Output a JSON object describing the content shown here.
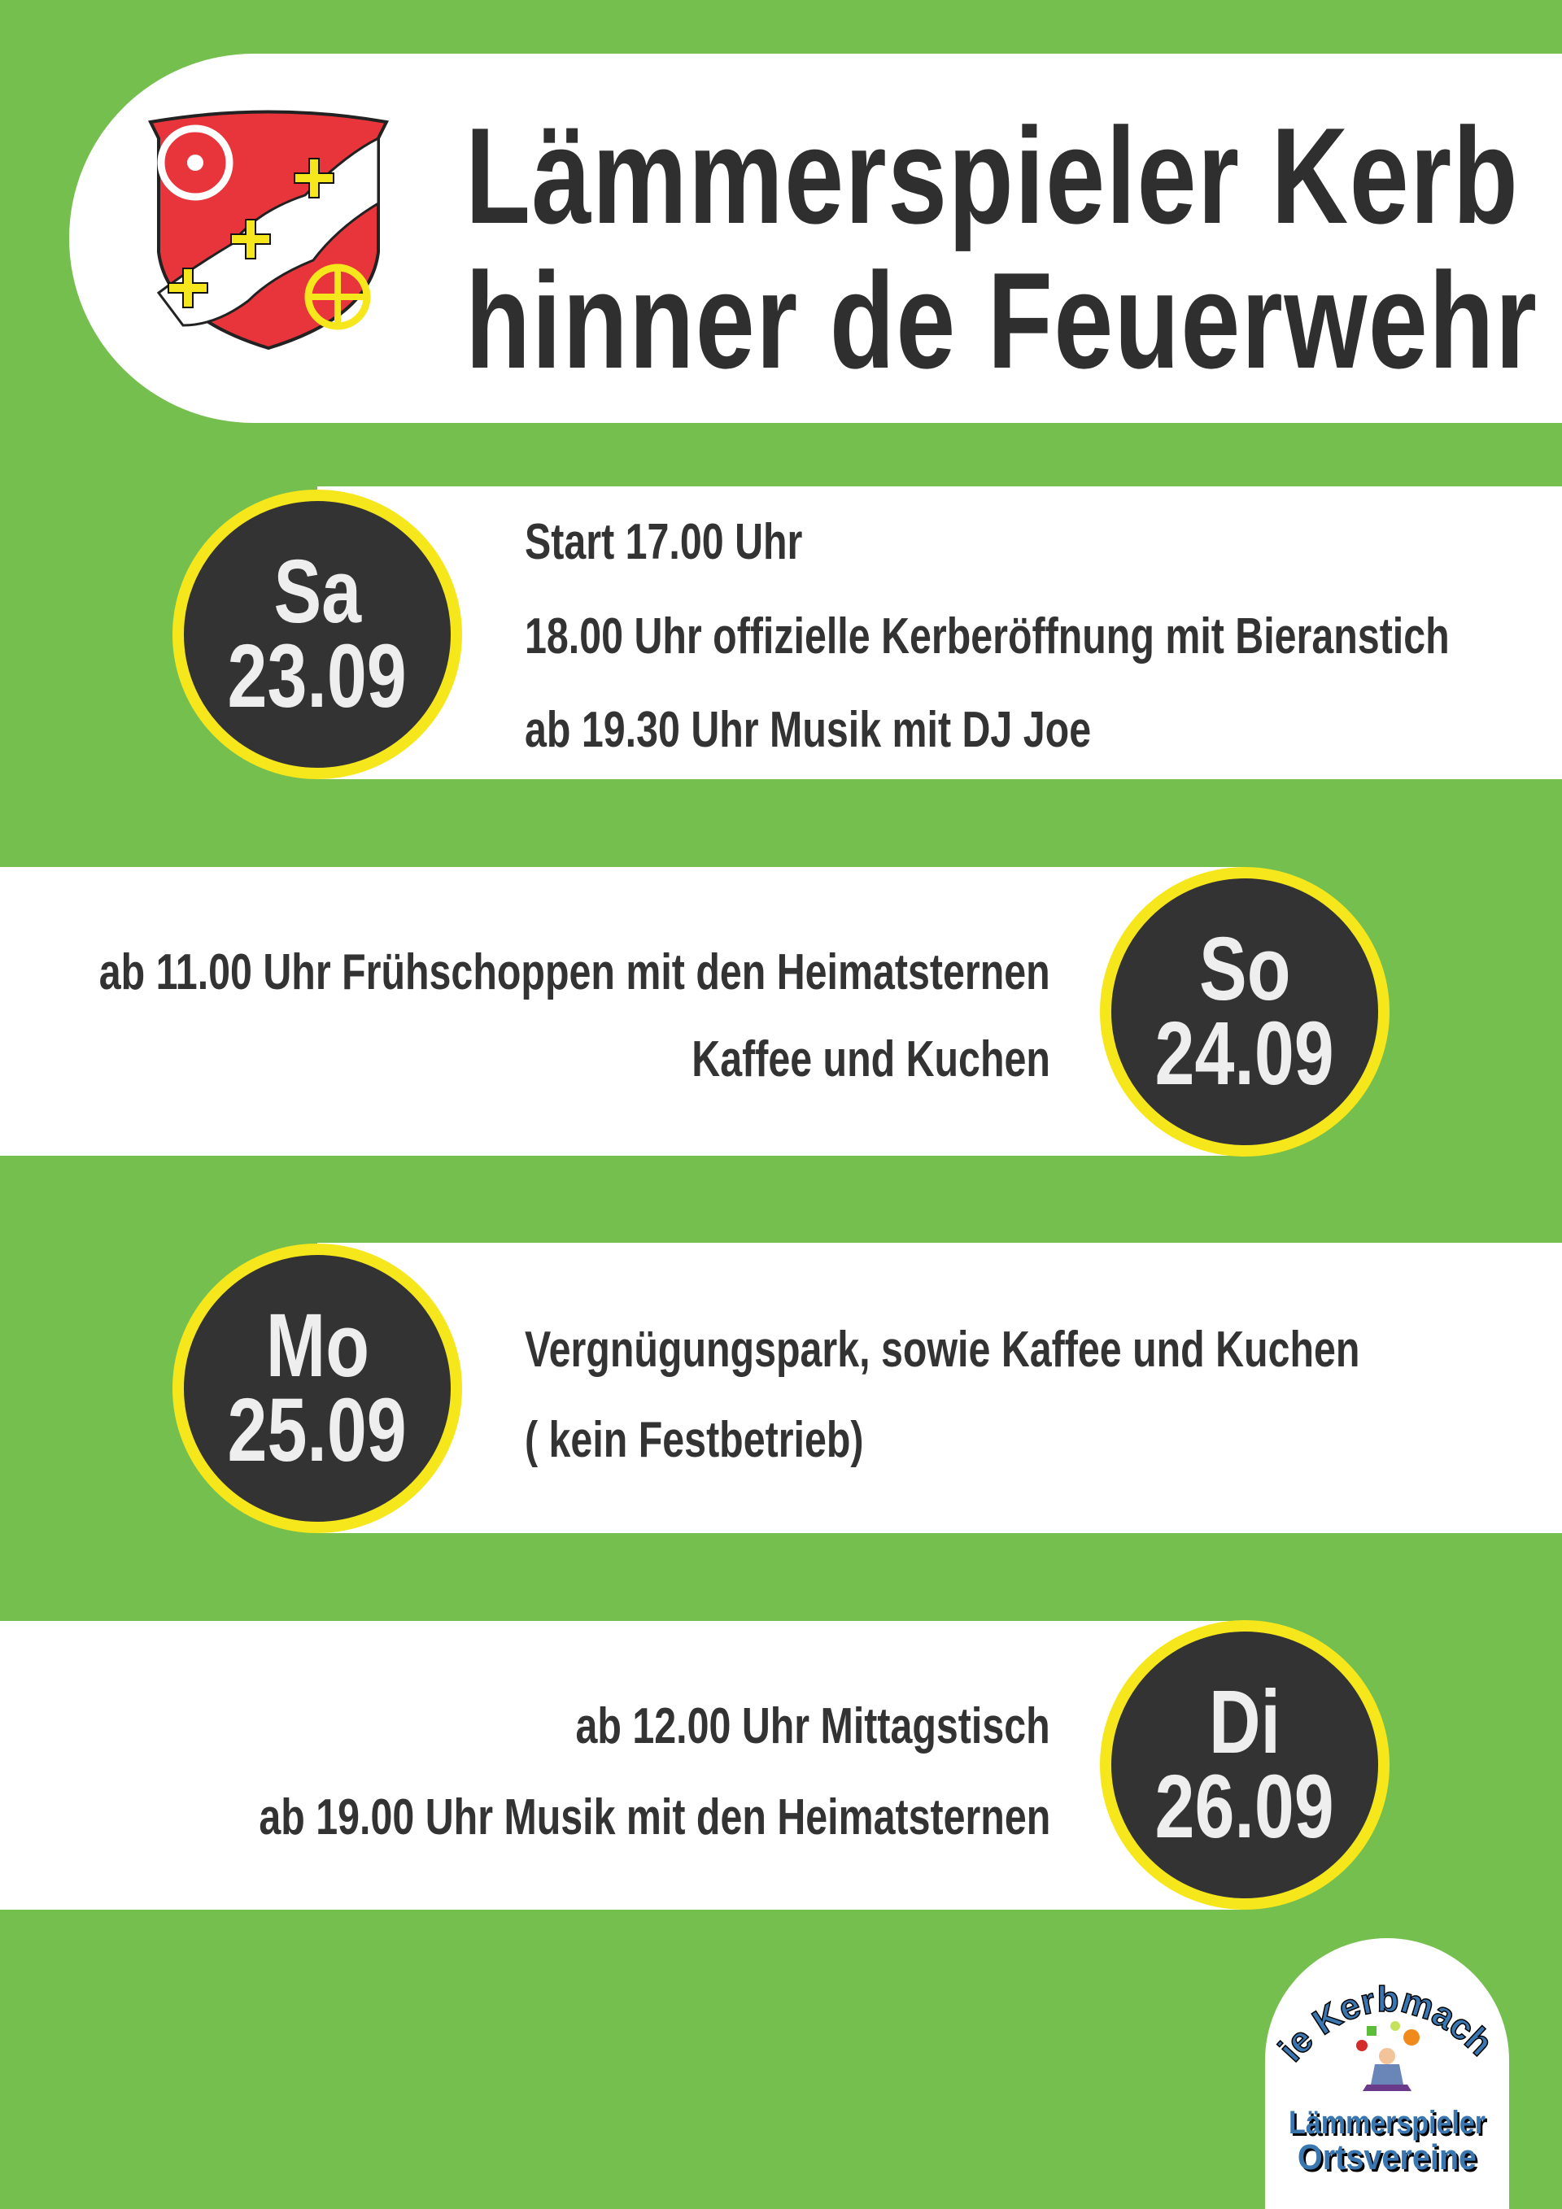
{
  "header": {
    "title_line1": "Lämmerspieler Kerb",
    "title_line2": "hinner de Feuerwehr",
    "emblem": "coat-of-arms"
  },
  "days": [
    {
      "day": "Sa",
      "date": "23.09",
      "lines": [
        "Start 17.00 Uhr",
        "18.00 Uhr offizielle Kerberöffnung mit Bieranstich",
        "ab 19.30 Uhr Musik mit DJ Joe"
      ]
    },
    {
      "day": "So",
      "date": "24.09",
      "lines": [
        "ab 11.00 Uhr Frühschoppen mit den Heimatsternen",
        "Kaffee und Kuchen"
      ]
    },
    {
      "day": "Mo",
      "date": "25.09",
      "lines": [
        "Vergnügungspark, sowie Kaffee und Kuchen",
        "( kein Festbetrieb)"
      ]
    },
    {
      "day": "Di",
      "date": "26.09",
      "lines": [
        "ab 12.00 Uhr Mittagstisch",
        "ab 19.00 Uhr Musik mit den Heimatsternen"
      ]
    }
  ],
  "footer_logo": {
    "arc_text": "Die Kerbmacher",
    "line1": "Lämmerspieler",
    "line2": "Ortsvereine"
  },
  "colors": {
    "background": "#75bf4f",
    "circle": "#333333",
    "ring": "#f6e71d",
    "text": "#2f2f2f"
  }
}
